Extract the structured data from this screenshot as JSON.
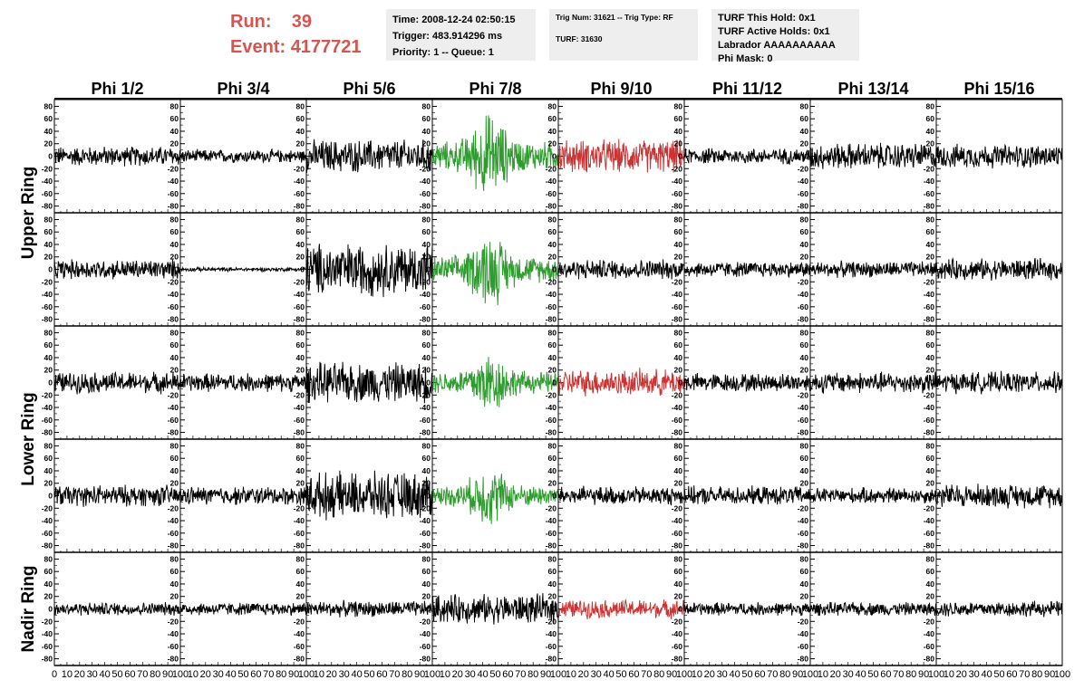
{
  "header": {
    "run_label": "Run:",
    "run_value": "39",
    "event_label": "Event:",
    "event_value": "4177721",
    "accent_color": "#d9534f"
  },
  "info_boxes": {
    "time_line": "Time: 2008-12-24 02:50:15",
    "trigger_line": "Trigger: 483.914296 ms",
    "priority_line": "Priority: 1 -- Queue: 1",
    "trig_num_line": "Trig Num: 31621 -- Trig Type: RF",
    "turf_line": "TURF: 31630",
    "turf_this_hold": "TURF This Hold: 0x1",
    "turf_active_holds": "TURF Active Holds: 0x1",
    "labrador": "Labrador AAAAAAAAAA",
    "phi_mask": "Phi Mask: 0"
  },
  "chart_data": {
    "type": "line",
    "description_type": "grid of waveform line plots",
    "columns": [
      "Phi 1/2",
      "Phi 3/4",
      "Phi 5/6",
      "Phi 7/8",
      "Phi 9/10",
      "Phi 11/12",
      "Phi 13/14",
      "Phi 15/16"
    ],
    "rows": [
      "Upper Ring",
      "Lower Ring",
      "Nadir Ring"
    ],
    "row_label_rows": [
      [
        0,
        1
      ],
      [
        2,
        3
      ],
      [
        4
      ]
    ],
    "subplot_rows": 5,
    "xlim": [
      0,
      100
    ],
    "ylim": [
      -85,
      85
    ],
    "y_ticks": [
      -80,
      -60,
      -40,
      -20,
      0,
      20,
      40,
      60,
      80
    ],
    "x_tick_labels": [
      "0",
      "10",
      "20",
      "30",
      "40",
      "50",
      "60",
      "70",
      "80",
      "90",
      "100"
    ],
    "grid": false,
    "colors": {
      "normal": "#000000",
      "triggered": "#2e9c2e",
      "l2": "#cc3333"
    },
    "panels": [
      [
        "black",
        "black",
        "black",
        "green",
        "red",
        "black",
        "black",
        "black"
      ],
      [
        "black",
        "black",
        "black",
        "green",
        "black",
        "black",
        "black",
        "black"
      ],
      [
        "black",
        "black",
        "black",
        "green",
        "red",
        "black",
        "black",
        "black"
      ],
      [
        "black",
        "black",
        "black",
        "green",
        "black",
        "black",
        "black",
        "black"
      ],
      [
        "black",
        "black",
        "black",
        "black",
        "red",
        "black",
        "black",
        "black"
      ]
    ],
    "amplitudes": [
      [
        15,
        10,
        25,
        40,
        25,
        12,
        20,
        18
      ],
      [
        15,
        3,
        40,
        35,
        15,
        12,
        12,
        16
      ],
      [
        16,
        14,
        30,
        30,
        20,
        14,
        16,
        16
      ],
      [
        16,
        14,
        35,
        28,
        14,
        14,
        12,
        18
      ],
      [
        10,
        10,
        12,
        22,
        14,
        10,
        10,
        12
      ]
    ],
    "burst": [
      [
        0,
        0,
        0,
        1,
        0,
        0,
        0,
        0
      ],
      [
        0,
        0,
        0,
        1,
        0,
        0,
        0,
        0
      ],
      [
        0,
        0,
        0,
        1,
        0,
        0,
        0,
        0
      ],
      [
        0,
        0,
        0,
        1,
        0,
        0,
        0,
        0
      ],
      [
        0,
        0,
        0,
        0,
        0,
        0,
        0,
        0
      ]
    ]
  }
}
